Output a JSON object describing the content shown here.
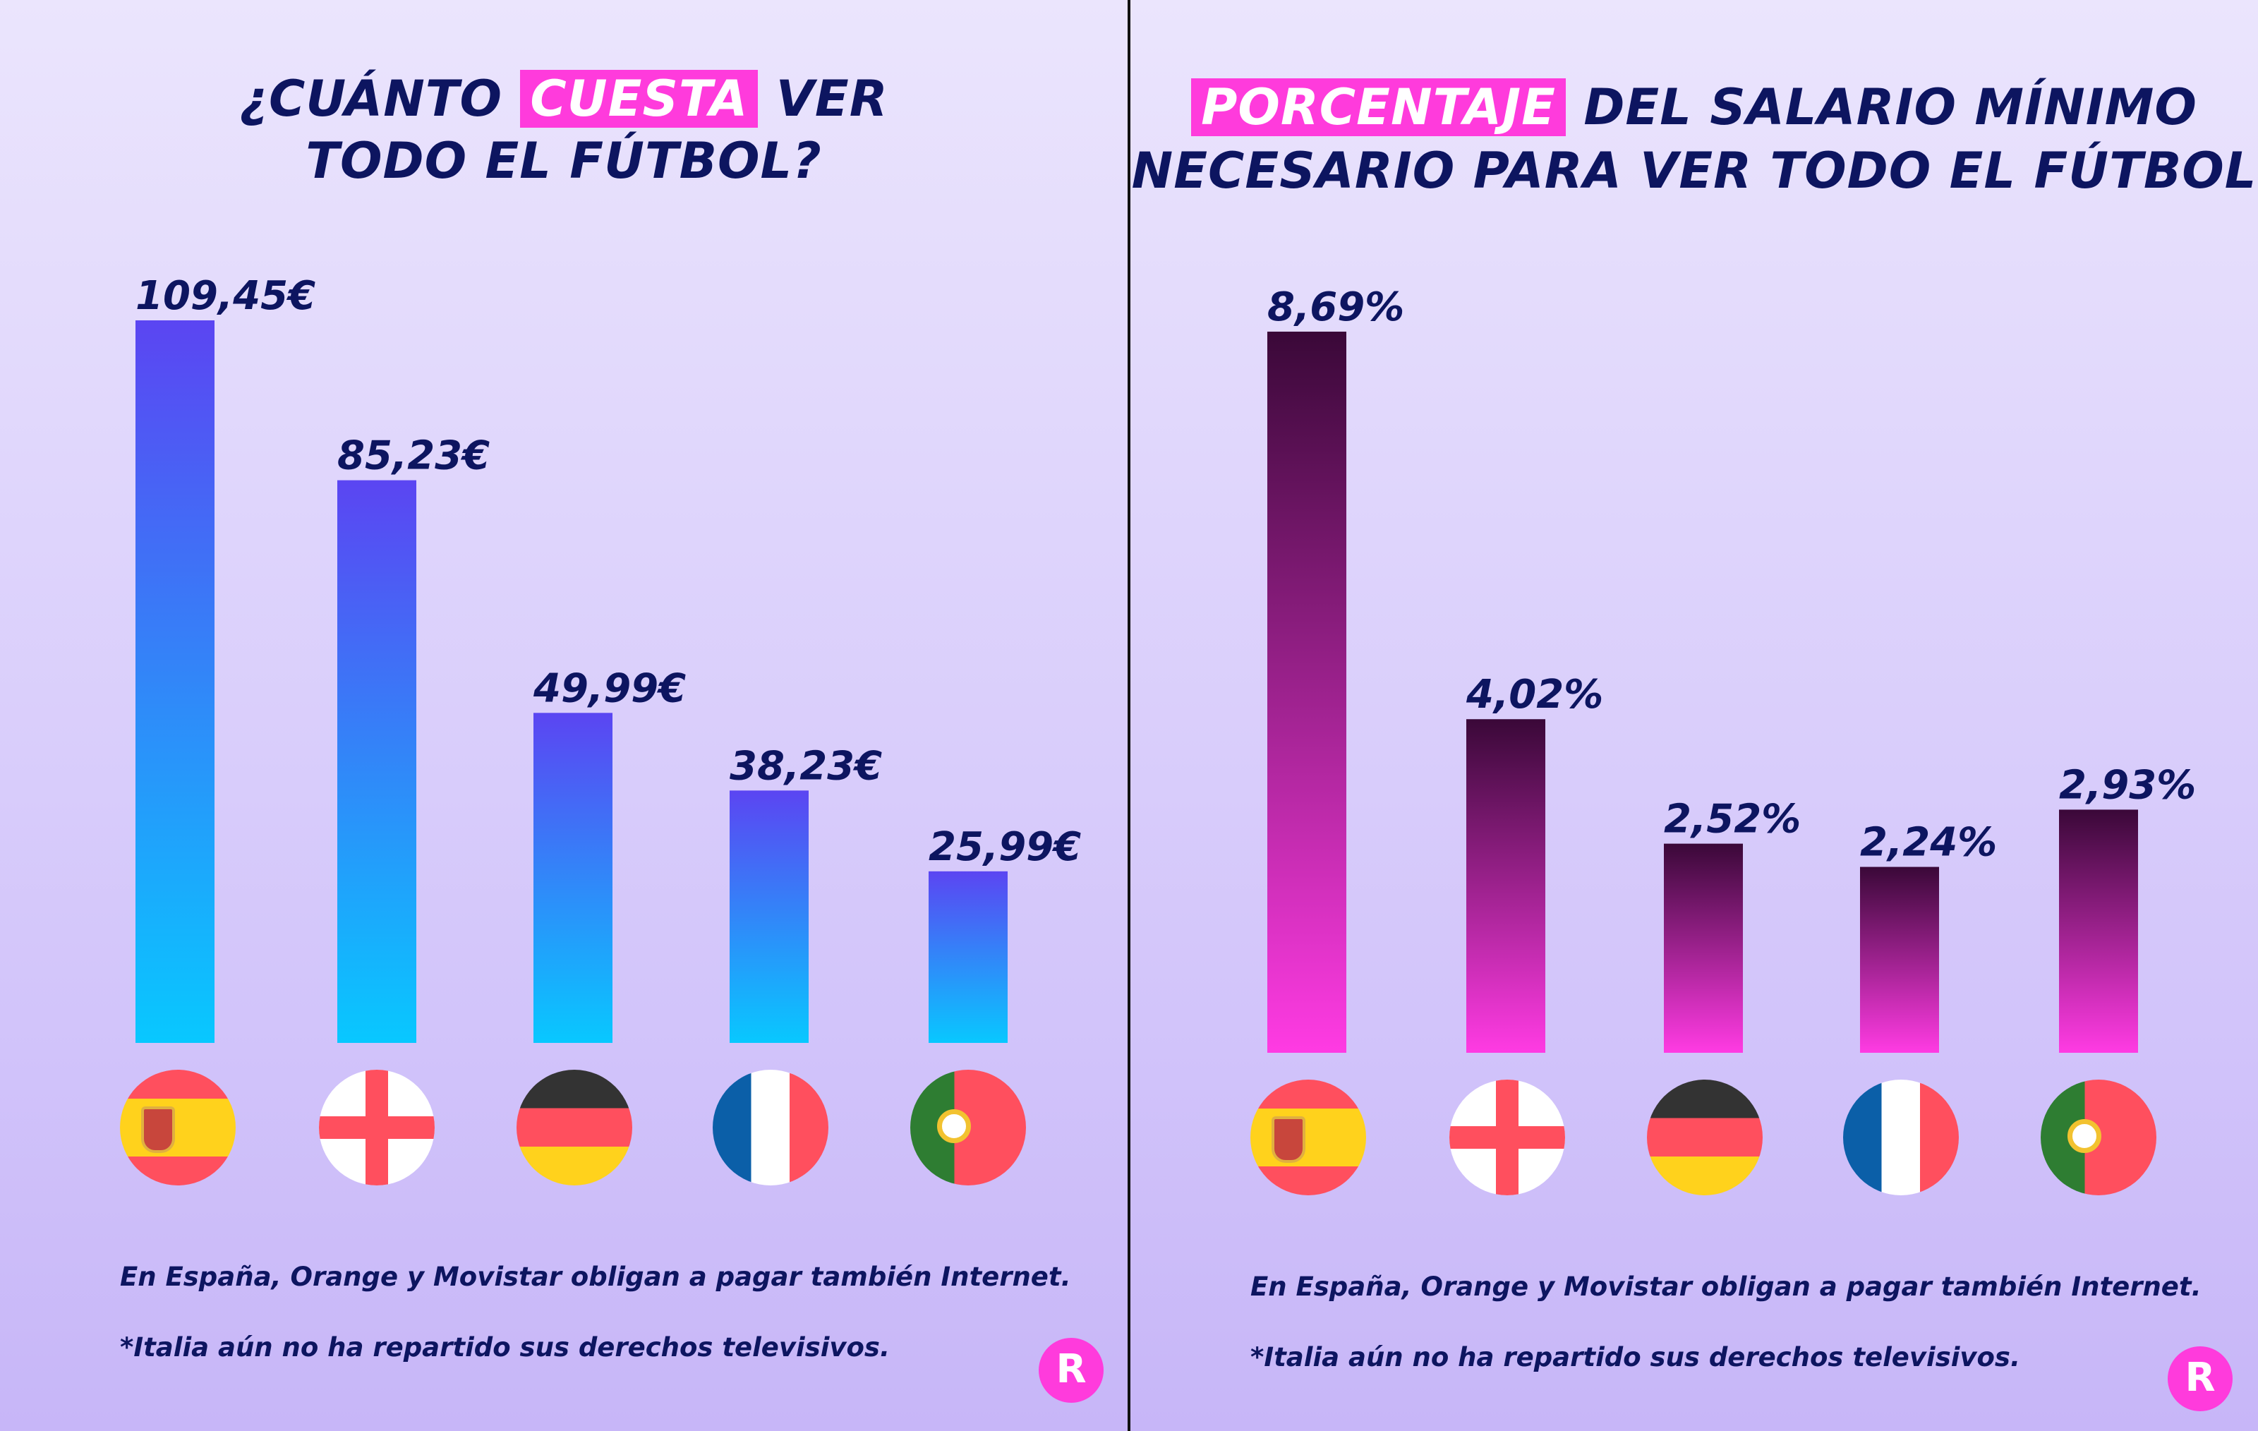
{
  "left": {
    "title_line1_pre": "¿CUÁNTO",
    "title_highlight": "CUESTA",
    "title_line1_post": "VER",
    "title_line2": "TODO EL FÚTBOL?",
    "note1": "En España, Orange y Movistar obligan a pagar también Internet.",
    "note2": "*Italia aún no ha repartido sus derechos televisivos.",
    "logo": "R"
  },
  "right": {
    "title_highlight": "PORCENTAJE",
    "title_line1_post": "DEL SALARIO MÍNIMO",
    "title_line2": "NECESARIO PARA VER TODO EL FÚTBOL",
    "note1": "En España, Orange y Movistar obligan a pagar también Internet.",
    "note2": "*Italia aún no ha repartido sus derechos televisivos.",
    "logo": "R"
  },
  "colors": {
    "text": "#0d1560",
    "highlight": "#ff3bdc",
    "cost_bar_top": "#5b45f2",
    "cost_bar_bottom": "#08c8ff",
    "pct_bar_top": "#3a0838",
    "pct_bar_bottom": "#ff3be3"
  },
  "chart_data": [
    {
      "type": "bar",
      "categories": [
        "España",
        "Inglaterra",
        "Alemania",
        "Francia",
        "Portugal"
      ],
      "category_icons": [
        "flag-es-icon",
        "flag-en-icon",
        "flag-de-icon",
        "flag-fr-icon",
        "flag-pt-icon"
      ],
      "values": [
        109.45,
        85.23,
        49.99,
        38.23,
        25.99
      ],
      "data_labels": [
        "109,45€",
        "85,23€",
        "49,99€",
        "38,23€",
        "25,99€"
      ],
      "title": "¿CUÁNTO CUESTA VER TODO EL FÚTBOL?",
      "ylim": [
        0,
        109.45
      ],
      "grid": false
    },
    {
      "type": "bar",
      "categories": [
        "España",
        "Inglaterra",
        "Alemania",
        "Francia",
        "Portugal"
      ],
      "category_icons": [
        "flag-es-icon",
        "flag-en-icon",
        "flag-de-icon",
        "flag-fr-icon",
        "flag-pt-icon"
      ],
      "values": [
        8.69,
        4.02,
        2.52,
        2.24,
        2.93
      ],
      "data_labels": [
        "8,69%",
        "4,02%",
        "2,52%",
        "2,24%",
        "2,93%"
      ],
      "title": "PORCENTAJE DEL SALARIO MÍNIMO NECESARIO PARA VER TODO EL FÚTBOL",
      "ylim": [
        0,
        8.69
      ],
      "grid": false
    }
  ]
}
